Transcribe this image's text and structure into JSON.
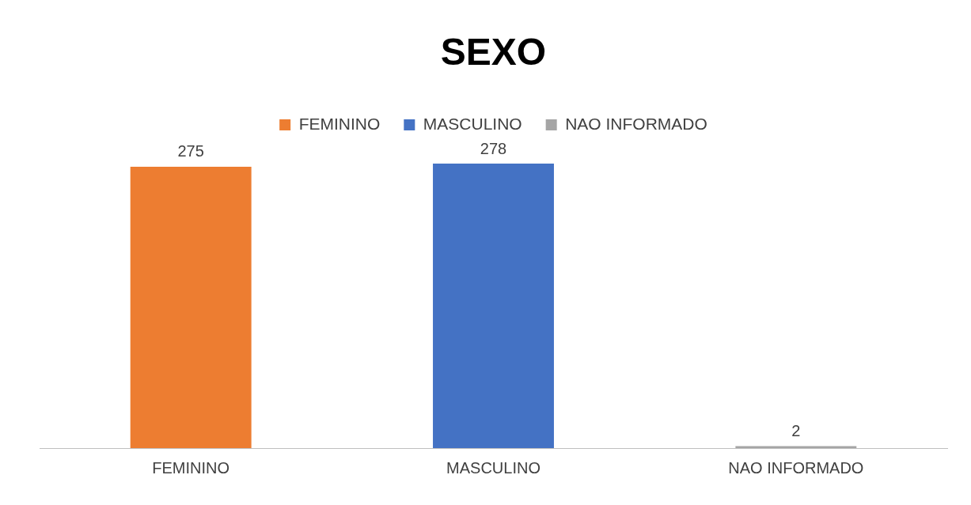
{
  "chart_data": {
    "type": "bar",
    "title": "SEXO",
    "categories": [
      "FEMININO",
      "MASCULINO",
      "NAO INFORMADO"
    ],
    "series": [
      {
        "name": "FEMININO",
        "color": "#ed7d31",
        "values": [
          275,
          null,
          null
        ]
      },
      {
        "name": "MASCULINO",
        "color": "#4472c4",
        "values": [
          null,
          278,
          null
        ]
      },
      {
        "name": "NAO INFORMADO",
        "color": "#a5a5a5",
        "values": [
          null,
          null,
          2
        ]
      }
    ],
    "legend": "top",
    "data_labels": true,
    "grid": false
  }
}
